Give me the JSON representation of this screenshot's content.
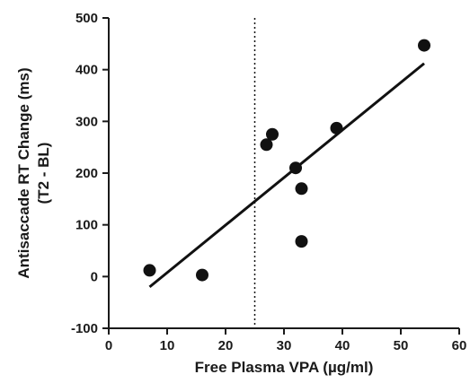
{
  "chart_data": {
    "type": "scatter",
    "xlabel": "Free Plasma VPA (µg/ml)",
    "ylabel_line1": "Antisaccade RT Change (ms)",
    "ylabel_line2": "(T2 - BL)",
    "xlim": [
      0,
      60
    ],
    "ylim": [
      -100,
      500
    ],
    "xticks": [
      0,
      10,
      20,
      30,
      40,
      50,
      60
    ],
    "yticks": [
      -100,
      0,
      100,
      200,
      300,
      400,
      500
    ],
    "points": [
      {
        "x": 7,
        "y": 12
      },
      {
        "x": 16,
        "y": 3
      },
      {
        "x": 27,
        "y": 255
      },
      {
        "x": 28,
        "y": 275
      },
      {
        "x": 32,
        "y": 210
      },
      {
        "x": 33,
        "y": 170
      },
      {
        "x": 33,
        "y": 68
      },
      {
        "x": 39,
        "y": 287
      },
      {
        "x": 54,
        "y": 447
      }
    ],
    "fit_line": {
      "x": [
        7,
        54
      ],
      "y": [
        -20,
        412
      ]
    },
    "reference_line_x": 25,
    "grid": false,
    "legend": "none"
  }
}
